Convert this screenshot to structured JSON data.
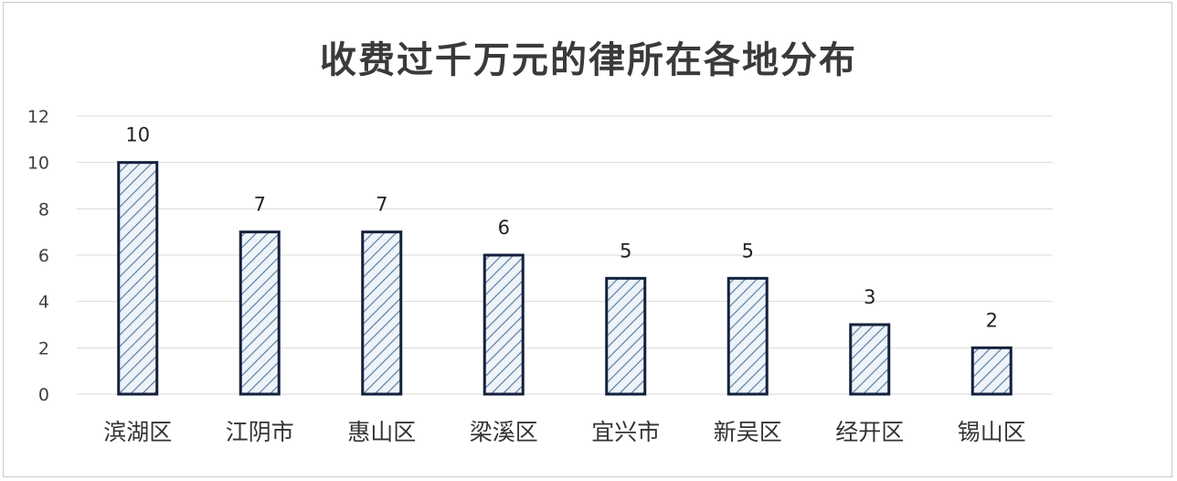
{
  "chart_data": {
    "type": "bar",
    "title": "收费过千万元的律所在各地分布",
    "xlabel": "",
    "ylabel": "",
    "categories": [
      "滨湖区",
      "江阴市",
      "惠山区",
      "梁溪区",
      "宜兴市",
      "新吴区",
      "经开区",
      "锡山区"
    ],
    "values": [
      10,
      7,
      7,
      6,
      5,
      5,
      3,
      2
    ],
    "ylim": [
      0,
      12
    ],
    "yticks": [
      0,
      2,
      4,
      6,
      8,
      10,
      12
    ],
    "grid": true,
    "legend": "none",
    "bar_fill": "hatched",
    "colors": {
      "bar_edge": "#14213d",
      "hatch": "#5b7fa6",
      "bar_bg": "#eef3f8",
      "grid": "#d9d9d9"
    }
  }
}
